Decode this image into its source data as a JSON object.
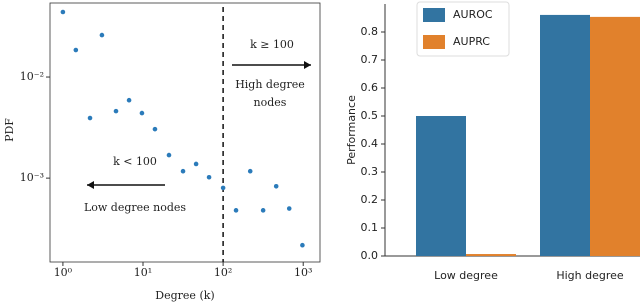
{
  "chart_data": [
    {
      "type": "scatter",
      "xlabel": "Degree (k)",
      "ylabel": "PDF",
      "xscale": "log",
      "yscale": "log",
      "x": [
        1,
        1.45,
        3.07,
        2.18,
        4.6,
        6.7,
        9.7,
        14.1,
        21.1,
        31.6,
        46,
        66.8,
        100,
        145,
        218,
        316,
        460,
        669,
        977
      ],
      "y": [
        0.044,
        0.0185,
        0.026,
        0.00393,
        0.0046,
        0.0059,
        0.0044,
        0.00305,
        0.00169,
        0.00117,
        0.00138,
        0.00102,
        0.0008,
        0.00048,
        0.00117,
        0.00048,
        0.00083,
        0.0005,
        0.000217
      ],
      "color": "#2b7bba",
      "xlim": [
        0.69,
        1620
      ],
      "ylim": [
        0.000148,
        0.054
      ],
      "xticks": [
        {
          "value": 1,
          "label": "10⁰"
        },
        {
          "value": 10,
          "label": "10¹"
        },
        {
          "value": 100,
          "label": "10²"
        },
        {
          "value": 1000,
          "label": "10³"
        }
      ],
      "yticks": [
        {
          "value": 0.001,
          "label": "10⁻³"
        },
        {
          "value": 0.01,
          "label": "10⁻²"
        }
      ],
      "vline": 100,
      "annotations": [
        "k ≥ 100",
        "High degree",
        "nodes",
        "k < 100",
        "Low degree nodes"
      ]
    },
    {
      "type": "bar",
      "ylabel": "Performance",
      "categories": [
        "Low degree",
        "High degree"
      ],
      "series": [
        {
          "name": "AUROC",
          "color": "#3274a1",
          "values": [
            0.5,
            0.861
          ]
        },
        {
          "name": "AUPRC",
          "color": "#e1812c",
          "values": [
            0.007,
            0.854
          ]
        }
      ],
      "ylim": [
        0,
        0.9
      ],
      "yticks": [
        {
          "value": 0,
          "label": "0.0"
        },
        0.1,
        0.2,
        0.3,
        0.4,
        0.5,
        0.6,
        0.7,
        0.8
      ],
      "legend": "upper left"
    }
  ]
}
